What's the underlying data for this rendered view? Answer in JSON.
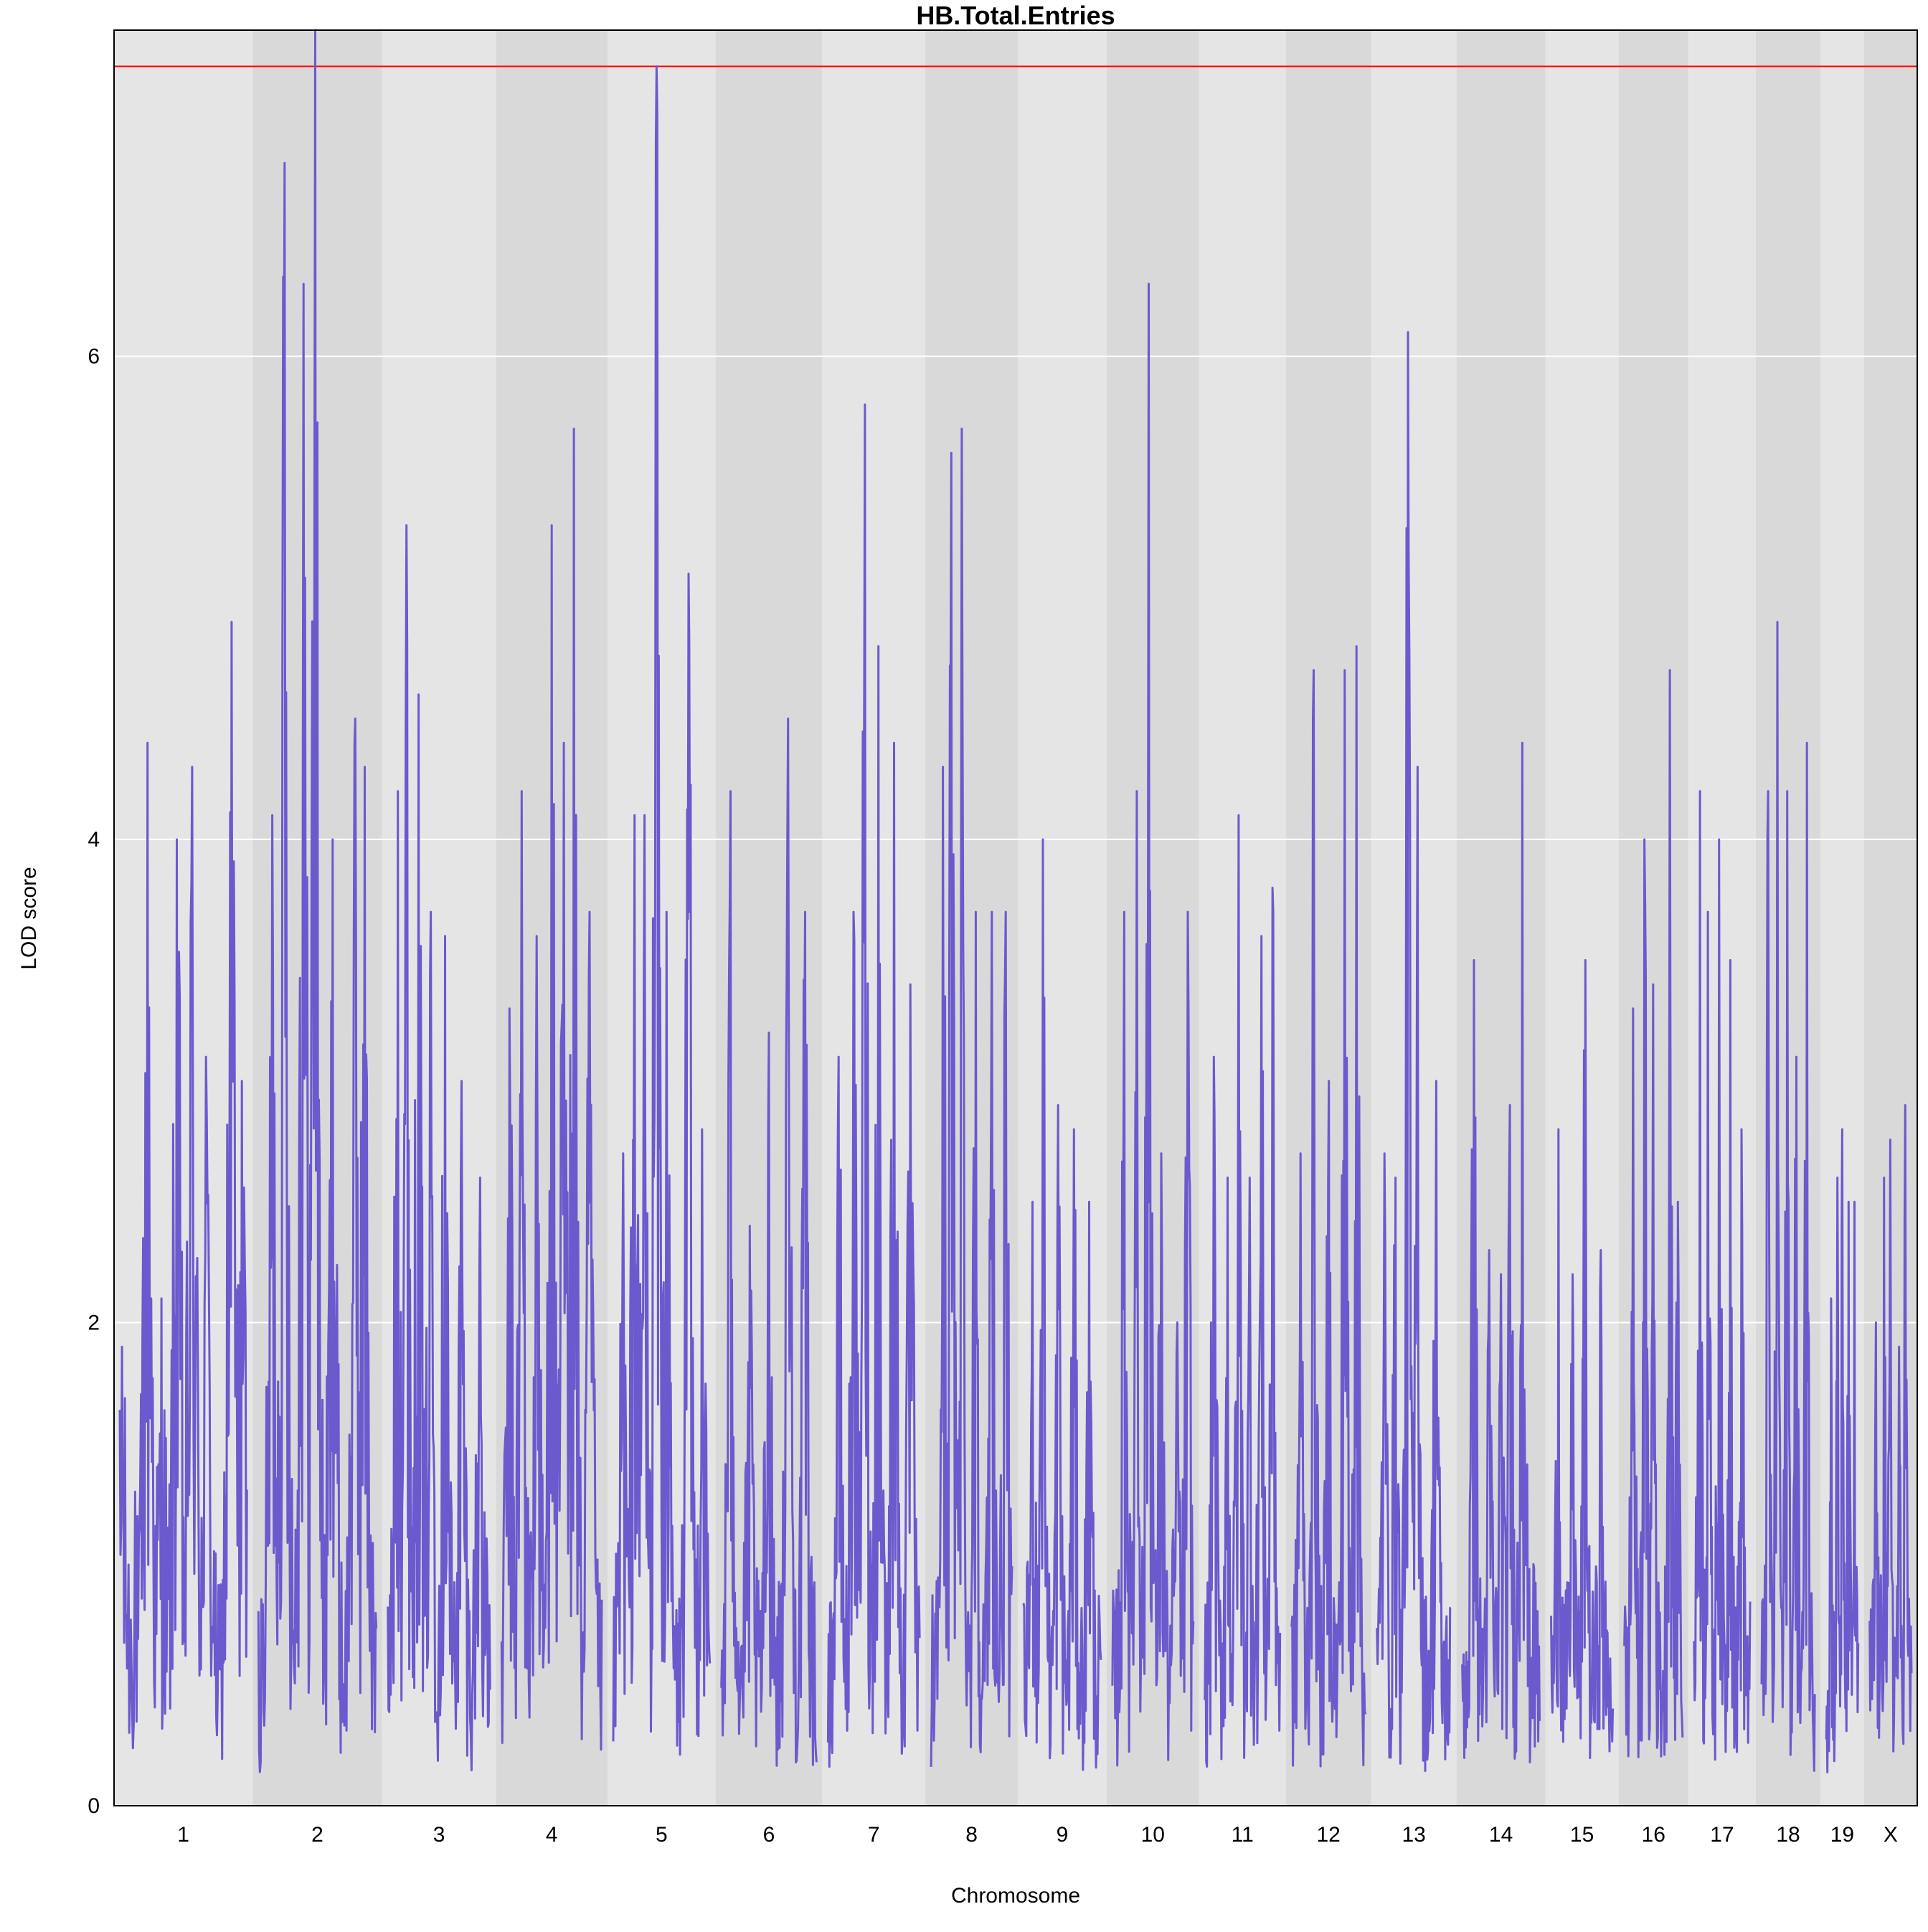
{
  "chart_data": {
    "type": "line",
    "title": "HB.Total.Entries",
    "xlabel": "Chromosome",
    "ylabel": "LOD score",
    "ylim": [
      0,
      7.35
    ],
    "yticks": [
      0,
      2,
      4,
      6
    ],
    "grid": true,
    "legend": "none",
    "threshold": 7.2,
    "colors": {
      "line": "#6a5acd",
      "threshold": "#ff0000",
      "band_light": "#e5e5e5",
      "band_dark": "#d9d9d9",
      "grid": "#ffffff"
    },
    "chromosomes": [
      {
        "name": "1",
        "length": 195,
        "peaks": [
          [
            0.02,
            1.9
          ],
          [
            0.12,
            1.3
          ],
          [
            0.22,
            4.4
          ],
          [
            0.33,
            2.1
          ],
          [
            0.45,
            4.0
          ],
          [
            0.57,
            4.3
          ],
          [
            0.68,
            3.1
          ],
          [
            0.88,
            4.9
          ],
          [
            0.96,
            3.0
          ]
        ]
      },
      {
        "name": "2",
        "length": 182,
        "peaks": [
          [
            0.12,
            4.1
          ],
          [
            0.22,
            6.8
          ],
          [
            0.38,
            6.3
          ],
          [
            0.48,
            7.35
          ],
          [
            0.63,
            4.0
          ],
          [
            0.82,
            4.5
          ],
          [
            0.9,
            4.3
          ]
        ]
      },
      {
        "name": "3",
        "length": 160,
        "peaks": [
          [
            0.1,
            4.2
          ],
          [
            0.18,
            5.3
          ],
          [
            0.3,
            4.6
          ],
          [
            0.42,
            3.7
          ],
          [
            0.56,
            3.6
          ],
          [
            0.72,
            3.0
          ],
          [
            0.9,
            2.6
          ]
        ]
      },
      {
        "name": "4",
        "length": 157,
        "peaks": [
          [
            0.08,
            3.3
          ],
          [
            0.2,
            4.2
          ],
          [
            0.35,
            3.6
          ],
          [
            0.5,
            5.3
          ],
          [
            0.62,
            4.4
          ],
          [
            0.72,
            5.7
          ],
          [
            0.88,
            3.7
          ]
        ]
      },
      {
        "name": "5",
        "length": 152,
        "peaks": [
          [
            0.1,
            2.7
          ],
          [
            0.22,
            4.1
          ],
          [
            0.32,
            4.1
          ],
          [
            0.45,
            7.2
          ],
          [
            0.55,
            3.7
          ],
          [
            0.78,
            5.1
          ],
          [
            0.92,
            2.8
          ]
        ]
      },
      {
        "name": "6",
        "length": 150,
        "peaks": [
          [
            0.1,
            4.2
          ],
          [
            0.3,
            2.4
          ],
          [
            0.5,
            3.2
          ],
          [
            0.7,
            4.5
          ],
          [
            0.88,
            3.7
          ]
        ]
      },
      {
        "name": "7",
        "length": 145,
        "peaks": [
          [
            0.12,
            3.1
          ],
          [
            0.28,
            3.7
          ],
          [
            0.4,
            5.8
          ],
          [
            0.55,
            4.8
          ],
          [
            0.72,
            4.4
          ],
          [
            0.9,
            3.4
          ]
        ]
      },
      {
        "name": "8",
        "length": 130,
        "peaks": [
          [
            0.15,
            4.3
          ],
          [
            0.25,
            5.6
          ],
          [
            0.38,
            5.7
          ],
          [
            0.55,
            3.7
          ],
          [
            0.75,
            3.7
          ],
          [
            0.92,
            3.7
          ]
        ]
      },
      {
        "name": "9",
        "length": 125,
        "peaks": [
          [
            0.12,
            2.5
          ],
          [
            0.25,
            4.0
          ],
          [
            0.45,
            2.9
          ],
          [
            0.65,
            2.8
          ],
          [
            0.85,
            2.5
          ]
        ]
      },
      {
        "name": "10",
        "length": 130,
        "peaks": [
          [
            0.15,
            3.7
          ],
          [
            0.3,
            4.2
          ],
          [
            0.45,
            6.3
          ],
          [
            0.6,
            2.7
          ],
          [
            0.8,
            2.0
          ],
          [
            0.93,
            3.7
          ]
        ]
      },
      {
        "name": "11",
        "length": 122,
        "peaks": [
          [
            0.12,
            3.1
          ],
          [
            0.3,
            2.6
          ],
          [
            0.45,
            4.1
          ],
          [
            0.6,
            2.6
          ],
          [
            0.75,
            3.6
          ],
          [
            0.9,
            3.8
          ]
        ]
      },
      {
        "name": "12",
        "length": 120,
        "peaks": [
          [
            0.12,
            2.7
          ],
          [
            0.3,
            4.7
          ],
          [
            0.5,
            3.0
          ],
          [
            0.72,
            4.7
          ],
          [
            0.88,
            4.8
          ]
        ]
      },
      {
        "name": "13",
        "length": 120,
        "peaks": [
          [
            0.1,
            2.7
          ],
          [
            0.25,
            2.6
          ],
          [
            0.42,
            6.1
          ],
          [
            0.55,
            4.3
          ],
          [
            0.8,
            3.0
          ]
        ]
      },
      {
        "name": "14",
        "length": 125,
        "peaks": [
          [
            0.15,
            3.5
          ],
          [
            0.35,
            2.3
          ],
          [
            0.5,
            2.2
          ],
          [
            0.62,
            2.9
          ],
          [
            0.78,
            4.4
          ],
          [
            0.92,
            1.0
          ]
        ]
      },
      {
        "name": "15",
        "length": 103,
        "peaks": [
          [
            0.12,
            2.8
          ],
          [
            0.35,
            2.2
          ],
          [
            0.55,
            3.5
          ],
          [
            0.8,
            2.3
          ]
        ]
      },
      {
        "name": "16",
        "length": 98,
        "peaks": [
          [
            0.15,
            3.3
          ],
          [
            0.35,
            4.0
          ],
          [
            0.5,
            3.4
          ],
          [
            0.78,
            4.7
          ],
          [
            0.92,
            2.5
          ]
        ]
      },
      {
        "name": "17",
        "length": 95,
        "peaks": [
          [
            0.1,
            4.2
          ],
          [
            0.25,
            3.7
          ],
          [
            0.45,
            4.0
          ],
          [
            0.65,
            3.5
          ],
          [
            0.85,
            2.8
          ]
        ]
      },
      {
        "name": "18",
        "length": 91,
        "peaks": [
          [
            0.12,
            4.2
          ],
          [
            0.3,
            4.9
          ],
          [
            0.48,
            4.2
          ],
          [
            0.65,
            3.1
          ],
          [
            0.85,
            4.4
          ]
        ]
      },
      {
        "name": "19",
        "length": 61,
        "peaks": [
          [
            0.15,
            2.1
          ],
          [
            0.35,
            2.6
          ],
          [
            0.5,
            2.8
          ],
          [
            0.7,
            2.5
          ],
          [
            0.88,
            2.5
          ]
        ]
      },
      {
        "name": "X",
        "length": 75,
        "peaks": [
          [
            0.15,
            2.0
          ],
          [
            0.35,
            2.6
          ],
          [
            0.5,
            3.1
          ],
          [
            0.7,
            1.9
          ],
          [
            0.85,
            2.9
          ]
        ]
      }
    ]
  }
}
